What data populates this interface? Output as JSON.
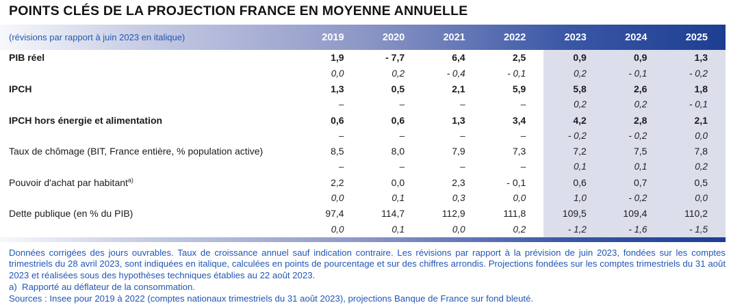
{
  "title": "POINTS CLÉS DE LA PROJECTION FRANCE EN MOYENNE ANNUELLE",
  "table": {
    "header_note": "(révisions par rapport à juin 2023 en italique)",
    "years": [
      "2019",
      "2020",
      "2021",
      "2022",
      "2023",
      "2024",
      "2025"
    ],
    "rows": [
      {
        "label": "PIB réel",
        "values": [
          "1,9",
          "- 7,7",
          "6,4",
          "2,5",
          "0,9",
          "0,9",
          "1,3"
        ],
        "revisions": [
          "0,0",
          "0,2",
          "- 0,4",
          "- 0,1",
          "0,2",
          "- 0,1",
          "- 0,2"
        ]
      },
      {
        "label": "IPCH",
        "values": [
          "1,3",
          "0,5",
          "2,1",
          "5,9",
          "5,8",
          "2,6",
          "1,8"
        ],
        "revisions": [
          "–",
          "–",
          "–",
          "–",
          "0,2",
          "0,2",
          "- 0,1"
        ]
      },
      {
        "label": "IPCH hors énergie et alimentation",
        "values": [
          "0,6",
          "0,6",
          "1,3",
          "3,4",
          "4,2",
          "2,8",
          "2,1"
        ],
        "revisions": [
          "–",
          "–",
          "–",
          "–",
          "- 0,2",
          "- 0,2",
          "0,0"
        ]
      },
      {
        "label": "Taux de chômage (BIT, France entière, % population active)",
        "values": [
          "8,5",
          "8,0",
          "7,9",
          "7,3",
          "7,2",
          "7,5",
          "7,8"
        ],
        "revisions": [
          "–",
          "–",
          "–",
          "–",
          "0,1",
          "0,1",
          "0,2"
        ]
      },
      {
        "label": "Pouvoir d'achat par habitant",
        "label_sup": "a)",
        "values": [
          "2,2",
          "0,0",
          "2,3",
          "- 0,1",
          "0,6",
          "0,7",
          "0,5"
        ],
        "revisions": [
          "0,0",
          "0,1",
          "0,3",
          "0,0",
          "1,0",
          "- 0,2",
          "0,0"
        ]
      },
      {
        "label": "Dette publique (en % du PIB)",
        "values": [
          "97,4",
          "114,7",
          "112,9",
          "111,8",
          "109,5",
          "109,4",
          "110,2"
        ],
        "revisions": [
          "0,0",
          "0,1",
          "0,0",
          "0,2",
          "- 1,2",
          "- 1,6",
          "- 1,5"
        ]
      }
    ]
  },
  "footnotes": {
    "main": "Données corrigées des jours ouvrables. Taux de croissance annuel sauf indication contraire. Les révisions par rapport à la prévision de juin 2023, fondées sur les comptes trimestriels du 28 avril 2023, sont indiquées en italique, calculées en points de pourcentage et sur des chiffres arrondis. Projections fondées sur les comptes trimestriels du 31 août 2023 et réalisées sous des hypothèses techniques établies au 22 août 2023.",
    "note_a": "a)  Rapporté au déflateur de la consommation.",
    "sources": "Sources : Insee pour 2019 à 2022 (comptes nationaux trimestriels du 31 août 2023), projections Banque de France sur fond bleuté."
  },
  "colors": {
    "header_gradient_start": "#f7f8fc",
    "header_gradient_end": "#1d3e91",
    "projection_shade": "#dcdeec",
    "footnote_blue": "#2056b4",
    "title_black": "#141414"
  }
}
